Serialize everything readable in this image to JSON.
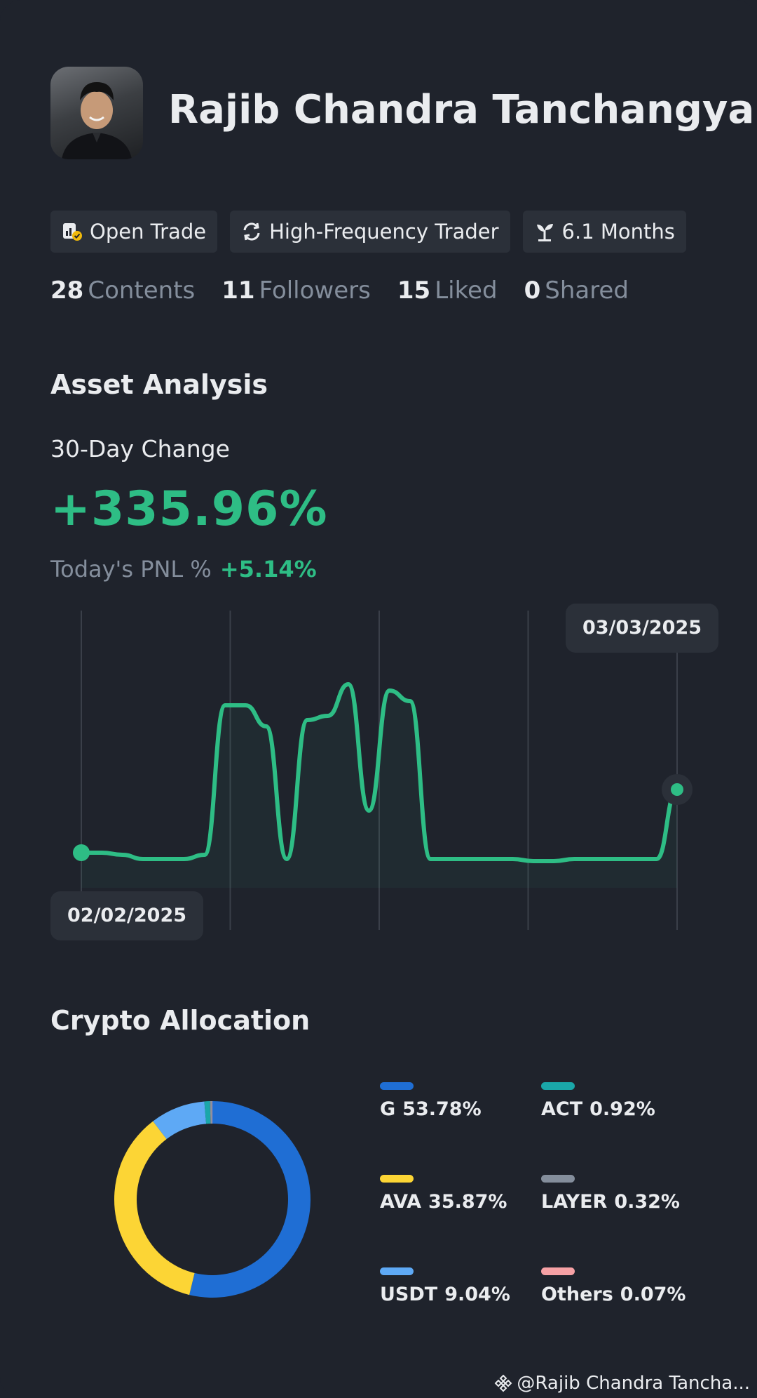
{
  "profile": {
    "name": "Rajib Chandra Tanchangya",
    "tags": [
      {
        "icon": "trade-shield-icon",
        "label": "Open Trade"
      },
      {
        "icon": "refresh-cycle-icon",
        "label": "High-Frequency Trader"
      },
      {
        "icon": "sprout-icon",
        "label": "6.1 Months"
      }
    ],
    "stats": [
      {
        "num": "28",
        "label": "Contents"
      },
      {
        "num": "11",
        "label": "Followers"
      },
      {
        "num": "15",
        "label": "Liked"
      },
      {
        "num": "0",
        "label": "Shared"
      }
    ]
  },
  "asset_analysis": {
    "title": "Asset Analysis",
    "change_label": "30-Day Change",
    "change_value": "+335.96%",
    "pnl_label": "Today's PNL %",
    "pnl_value": "+5.14%",
    "start_date": "02/02/2025",
    "end_date": "03/03/2025",
    "line_color": "#2ebd85"
  },
  "chart_data": [
    {
      "type": "line",
      "title": "",
      "xlabel": "",
      "ylabel": "",
      "x_range": [
        "02/02/2025",
        "03/03/2025"
      ],
      "y_range": [
        0,
        100
      ],
      "grid": "vertical",
      "series": [
        {
          "values": [
            10,
            10,
            9,
            7,
            7,
            7,
            9,
            80,
            80,
            70,
            7,
            73,
            75,
            90,
            30,
            87,
            82,
            7,
            7,
            7,
            7,
            7,
            6,
            6,
            7,
            7,
            7,
            7,
            7,
            40
          ]
        }
      ]
    },
    {
      "type": "pie",
      "title": "Crypto Allocation",
      "slices": [
        {
          "label": "G",
          "value": 53.78,
          "display": "53.78%",
          "color": "#1f6ed4"
        },
        {
          "label": "AVA",
          "value": 35.87,
          "display": "35.87%",
          "color": "#fcd535"
        },
        {
          "label": "USDT",
          "value": 9.04,
          "display": "9.04%",
          "color": "#5ea9f5"
        },
        {
          "label": "ACT",
          "value": 0.92,
          "display": "0.92%",
          "color": "#1aa7a9"
        },
        {
          "label": "LAYER",
          "value": 0.32,
          "display": "0.32%",
          "color": "#848e9c"
        },
        {
          "label": "Others",
          "value": 0.07,
          "display": "0.07%",
          "color": "#f6a1a5"
        }
      ]
    }
  ],
  "footer": {
    "handle": "@Rajib Chandra Tancha..."
  }
}
